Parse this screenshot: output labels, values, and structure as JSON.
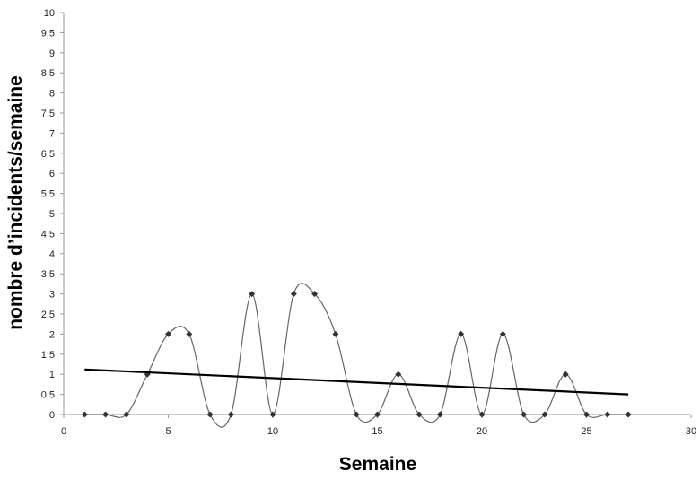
{
  "chart_data": {
    "type": "scatter",
    "title": "",
    "xlabel": "Semaine",
    "ylabel": "nombre d’incidents/semaine",
    "xlim": [
      0,
      30
    ],
    "ylim": [
      0,
      10
    ],
    "x_ticks": [
      "0",
      "5",
      "10",
      "15",
      "20",
      "25",
      "30"
    ],
    "y_ticks": [
      "0",
      "0,5",
      "1",
      "1,5",
      "2",
      "2,5",
      "3",
      "3,5",
      "4",
      "4,5",
      "5",
      "5,5",
      "6",
      "6,5",
      "7",
      "7,5",
      "8",
      "8,5",
      "9",
      "9,5",
      "10"
    ],
    "grid": false,
    "legend": "none",
    "series": [
      {
        "style": "smoothed line with diamond markers",
        "color": "#666666",
        "marker_color": "#333333",
        "x": [
          1,
          2,
          3,
          4,
          5,
          6,
          7,
          8,
          9,
          10,
          11,
          12,
          13,
          14,
          15,
          16,
          17,
          18,
          19,
          20,
          21,
          22,
          23,
          24,
          25,
          26,
          27
        ],
        "y": [
          0,
          0,
          0,
          1,
          2,
          2,
          0,
          0,
          3,
          0,
          3,
          3,
          2,
          0,
          0,
          1,
          0,
          0,
          2,
          0,
          2,
          0,
          0,
          1,
          0,
          0,
          0
        ]
      }
    ],
    "trendline": {
      "type": "linear",
      "color": "#000000",
      "x": [
        1,
        27
      ],
      "y": [
        1.12,
        0.5
      ]
    }
  }
}
